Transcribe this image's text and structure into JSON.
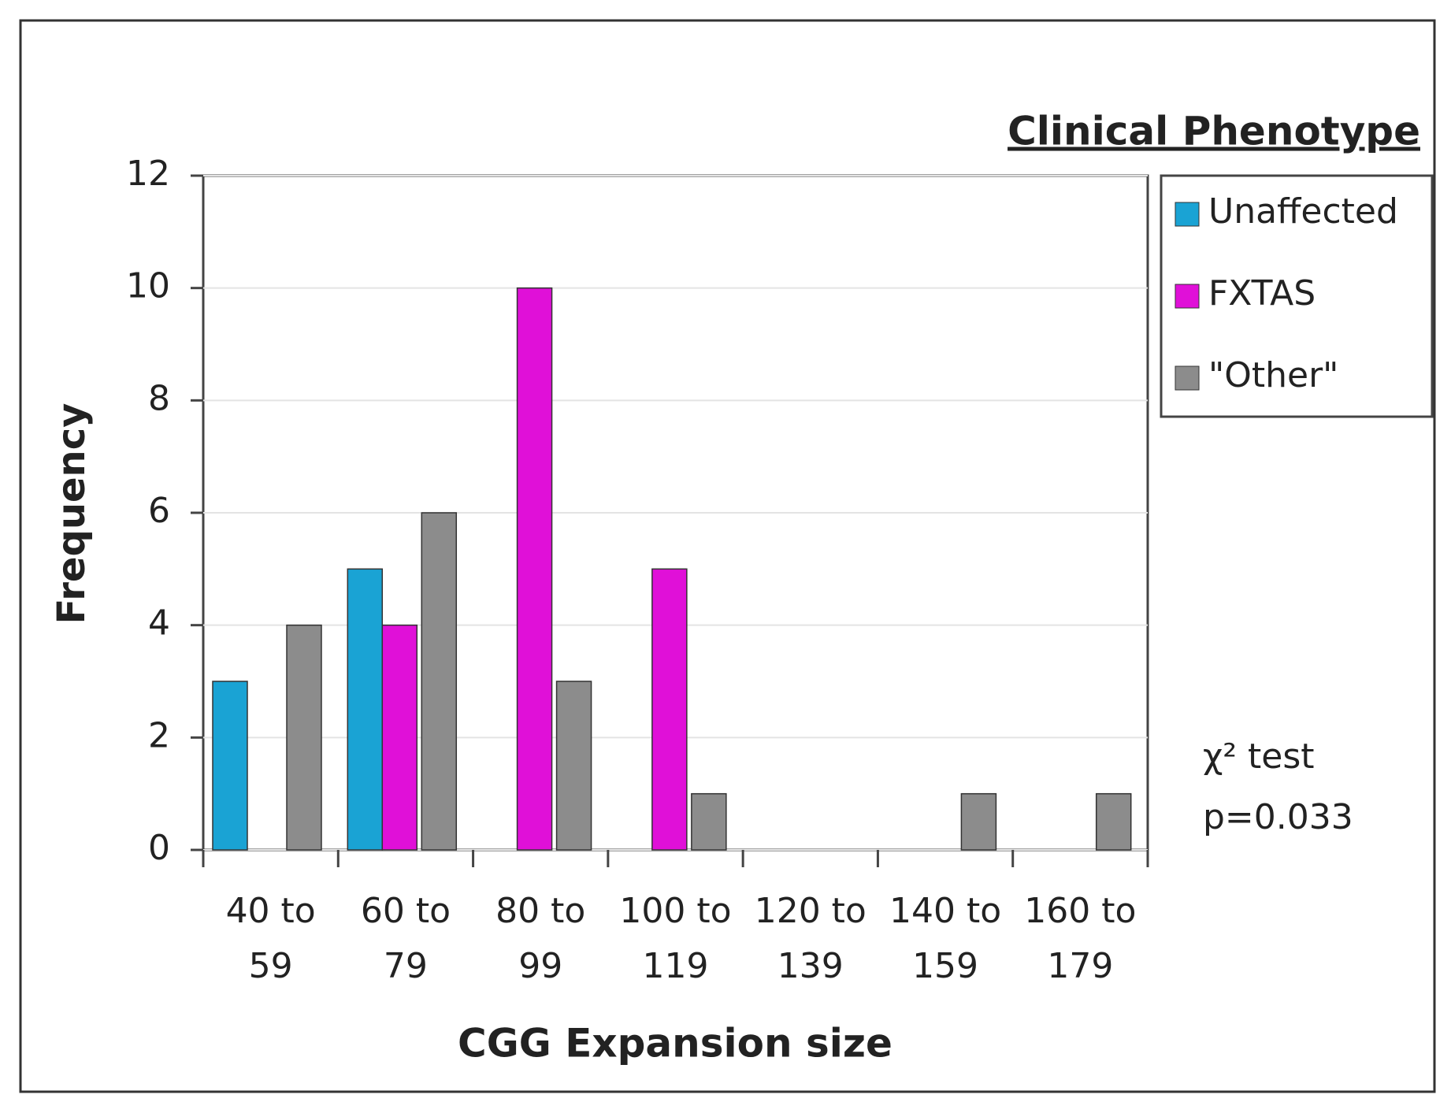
{
  "chart_data": {
    "type": "bar",
    "y_label": "Frequency",
    "x_label": "CGG Expansion size",
    "legend_title": "Clinical Phenotype",
    "annotations": [
      "χ² test",
      "p=0.033"
    ],
    "categories": [
      "40 to 59",
      "60 to 79",
      "80 to 99",
      "100 to 119",
      "120 to 139",
      "140 to 159",
      "160 to 179"
    ],
    "series": [
      {
        "name": "Unaffected",
        "color": "#1aa3d4",
        "values": [
          3,
          5,
          0,
          0,
          0,
          0,
          0
        ]
      },
      {
        "name": "FXTAS",
        "color": "#e010d8",
        "values": [
          0,
          4,
          10,
          5,
          0,
          0,
          0
        ]
      },
      {
        "name": "\"Other\"",
        "color": "#8c8c8c",
        "values": [
          4,
          6,
          3,
          1,
          0,
          1,
          1
        ]
      }
    ],
    "ylim": [
      0,
      12
    ],
    "yticks": [
      0,
      2,
      4,
      6,
      8,
      10,
      12
    ],
    "grid": true,
    "legend": "right"
  }
}
